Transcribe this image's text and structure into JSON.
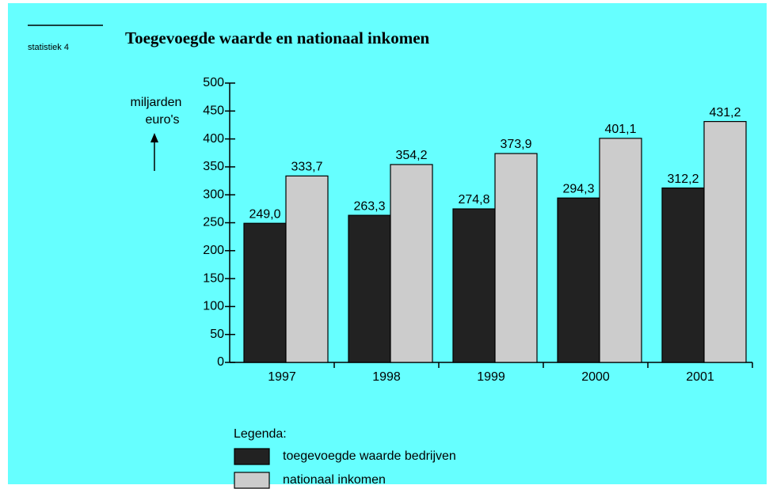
{
  "chart_data": {
    "type": "bar",
    "title": "Toegevoegde waarde en nationaal inkomen",
    "annotation": "statistiek 4",
    "ylabel": [
      "miljarden",
      "euro's"
    ],
    "legend_title": "Legenda:",
    "categories": [
      "1997",
      "1998",
      "1999",
      "2000",
      "2001"
    ],
    "series": [
      {
        "name": "toegevoegde waarde bedrijven",
        "color": "#222222",
        "values": [
          249.0,
          263.3,
          274.8,
          294.3,
          312.2
        ],
        "value_labels": [
          "249,0",
          "263,3",
          "274,8",
          "294,3",
          "312,2"
        ]
      },
      {
        "name": "nationaal inkomen",
        "color": "#cccccc",
        "values": [
          333.7,
          354.2,
          373.9,
          401.1,
          431.2
        ],
        "value_labels": [
          "333,7",
          "354,2",
          "373,9",
          "401,1",
          "431,2"
        ]
      }
    ],
    "ylim": [
      0,
      500
    ],
    "yticks": [
      0,
      50,
      100,
      150,
      200,
      250,
      300,
      350,
      400,
      450,
      500
    ],
    "grid": false
  }
}
